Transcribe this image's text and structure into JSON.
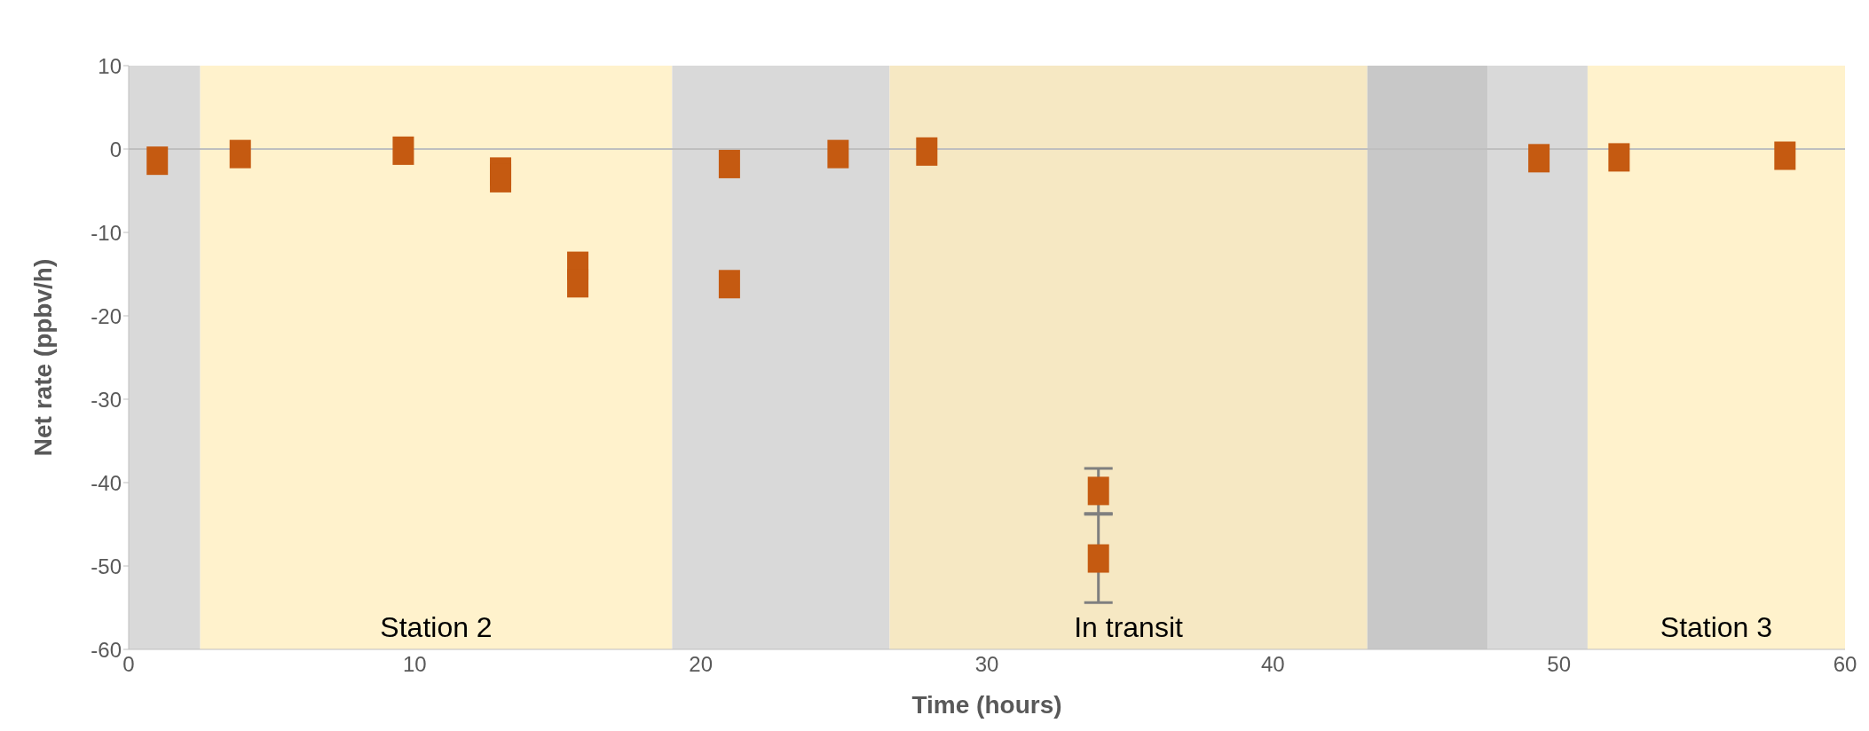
{
  "chart_data": {
    "type": "scatter",
    "xlabel": "Time (hours)",
    "ylabel": "Net rate (ppbv/h)",
    "x": [
      1.0,
      3.9,
      9.6,
      13.0,
      13.0,
      15.7,
      15.7,
      21.0,
      21.0,
      24.8,
      27.9,
      33.9,
      33.9,
      49.3,
      52.1,
      57.9
    ],
    "series": [
      {
        "color": "#c55a11",
        "values": [
          -1.4,
          -0.6,
          -0.2,
          -2.7,
          -3.5,
          -14.0,
          -16.1,
          -1.8,
          -16.2,
          -0.6,
          -0.3,
          -41.0,
          -49.1,
          -1.1,
          -1.0,
          -0.8
        ],
        "errors": [
          null,
          null,
          null,
          null,
          null,
          null,
          null,
          null,
          null,
          null,
          null,
          2.7,
          5.3,
          null,
          null,
          null
        ]
      }
    ],
    "xlim": [
      0,
      60
    ],
    "xticks": [
      0,
      10,
      20,
      30,
      40,
      50,
      60
    ],
    "ylim": [
      -60,
      10
    ],
    "yticks": [
      -60,
      -50,
      -40,
      -30,
      -20,
      -10,
      0,
      10
    ],
    "bands": [
      {
        "axis": "x",
        "from": 0,
        "to": 2.5,
        "label": null,
        "color": "#d9d9d9"
      },
      {
        "axis": "x",
        "from": 2.5,
        "to": 19,
        "label": "Station 2",
        "color": "#fff2cc"
      },
      {
        "axis": "x",
        "from": 19,
        "to": 26.6,
        "label": null,
        "color": "#d9d9d9"
      },
      {
        "axis": "x",
        "from": 26.6,
        "to": 43.3,
        "label": "In transit",
        "color": "#f6e8c3"
      },
      {
        "axis": "x",
        "from": 43.3,
        "to": 47.5,
        "label": null,
        "color": "#c8c8c8"
      },
      {
        "axis": "x",
        "from": 47.5,
        "to": 51,
        "label": null,
        "color": "#d9d9d9"
      },
      {
        "axis": "x",
        "from": 51,
        "to": 60,
        "label": "Station 3",
        "color": "#fff2cc"
      }
    ],
    "ref_lines": [
      {
        "axis": "y",
        "value": 0,
        "label": null,
        "color": "#bfbfbf"
      }
    ],
    "marker": "square",
    "grid": false,
    "legend": false
  }
}
